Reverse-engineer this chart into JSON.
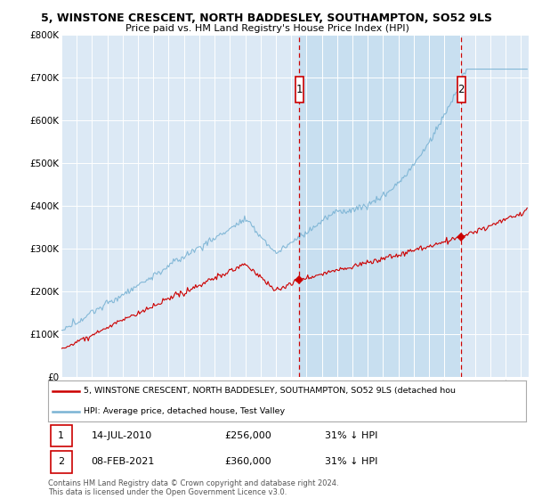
{
  "title_line1": "5, WINSTONE CRESCENT, NORTH BADDESLEY, SOUTHAMPTON, SO52 9LS",
  "title_line2": "Price paid vs. HM Land Registry's House Price Index (HPI)",
  "background_color": "#ffffff",
  "plot_bg_color": "#dce9f5",
  "shade_color": "#c8dff0",
  "grid_color": "#ffffff",
  "hpi_color": "#7ab3d4",
  "price_color": "#cc0000",
  "marker1_x": 2010.54,
  "marker2_x": 2021.1,
  "marker1_y_price": 256000,
  "marker2_y_price": 360000,
  "annotation1": [
    "1",
    "14-JUL-2010",
    "£256,000",
    "31% ↓ HPI"
  ],
  "annotation2": [
    "2",
    "08-FEB-2021",
    "£360,000",
    "31% ↓ HPI"
  ],
  "legend_label_price": "5, WINSTONE CRESCENT, NORTH BADDESLEY, SOUTHAMPTON, SO52 9LS (detached hou",
  "legend_label_hpi": "HPI: Average price, detached house, Test Valley",
  "footer": "Contains HM Land Registry data © Crown copyright and database right 2024.\nThis data is licensed under the Open Government Licence v3.0.",
  "ylim": [
    0,
    800000
  ],
  "xlim_start": 1995,
  "xlim_end": 2025.5,
  "yticks": [
    0,
    100000,
    200000,
    300000,
    400000,
    500000,
    600000,
    700000,
    800000
  ]
}
